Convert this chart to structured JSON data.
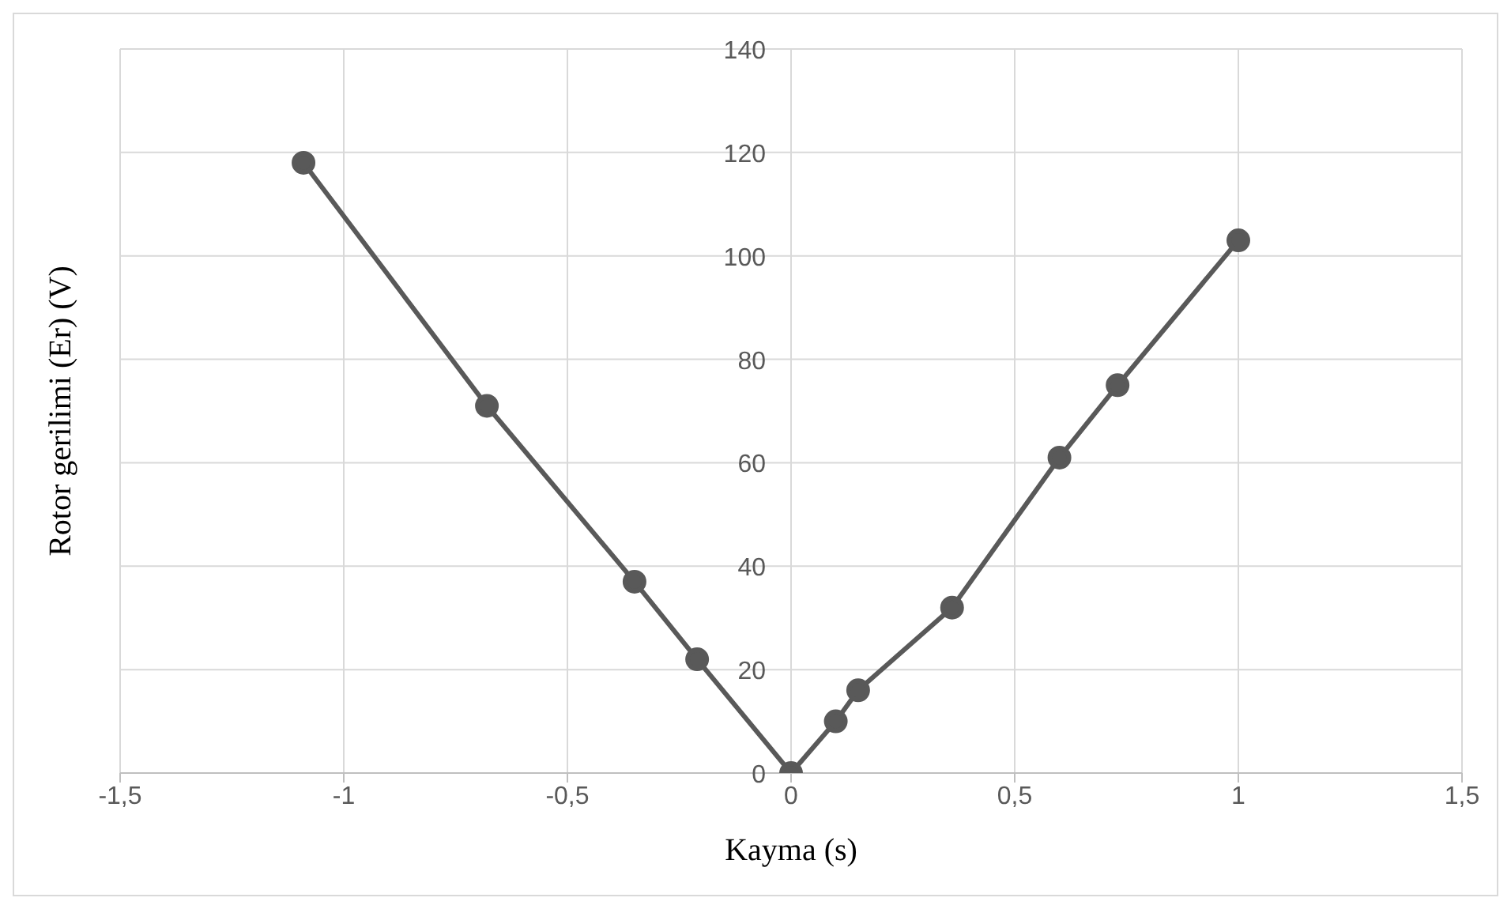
{
  "chart_data": {
    "type": "line",
    "xlabel": "Kayma (s)",
    "ylabel": "Rotor gerilimi (Er) (V)",
    "x": [
      -1.09,
      -0.68,
      -0.35,
      -0.21,
      0,
      0.1,
      0.15,
      0.36,
      0.6,
      0.73,
      1
    ],
    "series": [
      {
        "color": "#595959",
        "values": [
          118,
          71,
          37,
          22,
          0,
          10,
          16,
          32,
          61,
          75,
          103
        ]
      }
    ],
    "xlim": [
      -1.5,
      1.5
    ],
    "xticks": [
      {
        "value": -1.5,
        "label": "-1,5"
      },
      {
        "value": -1,
        "label": "-1"
      },
      {
        "value": -0.5,
        "label": "-0,5"
      },
      {
        "value": 0,
        "label": "0"
      },
      {
        "value": 0.5,
        "label": "0,5"
      },
      {
        "value": 1,
        "label": "1"
      },
      {
        "value": 1.5,
        "label": "1,5"
      }
    ],
    "ylim": [
      0,
      140
    ],
    "yticks": [
      0,
      20,
      40,
      60,
      80,
      100,
      120,
      140
    ],
    "grid": true,
    "marker": "circle",
    "line_style": "solid"
  }
}
